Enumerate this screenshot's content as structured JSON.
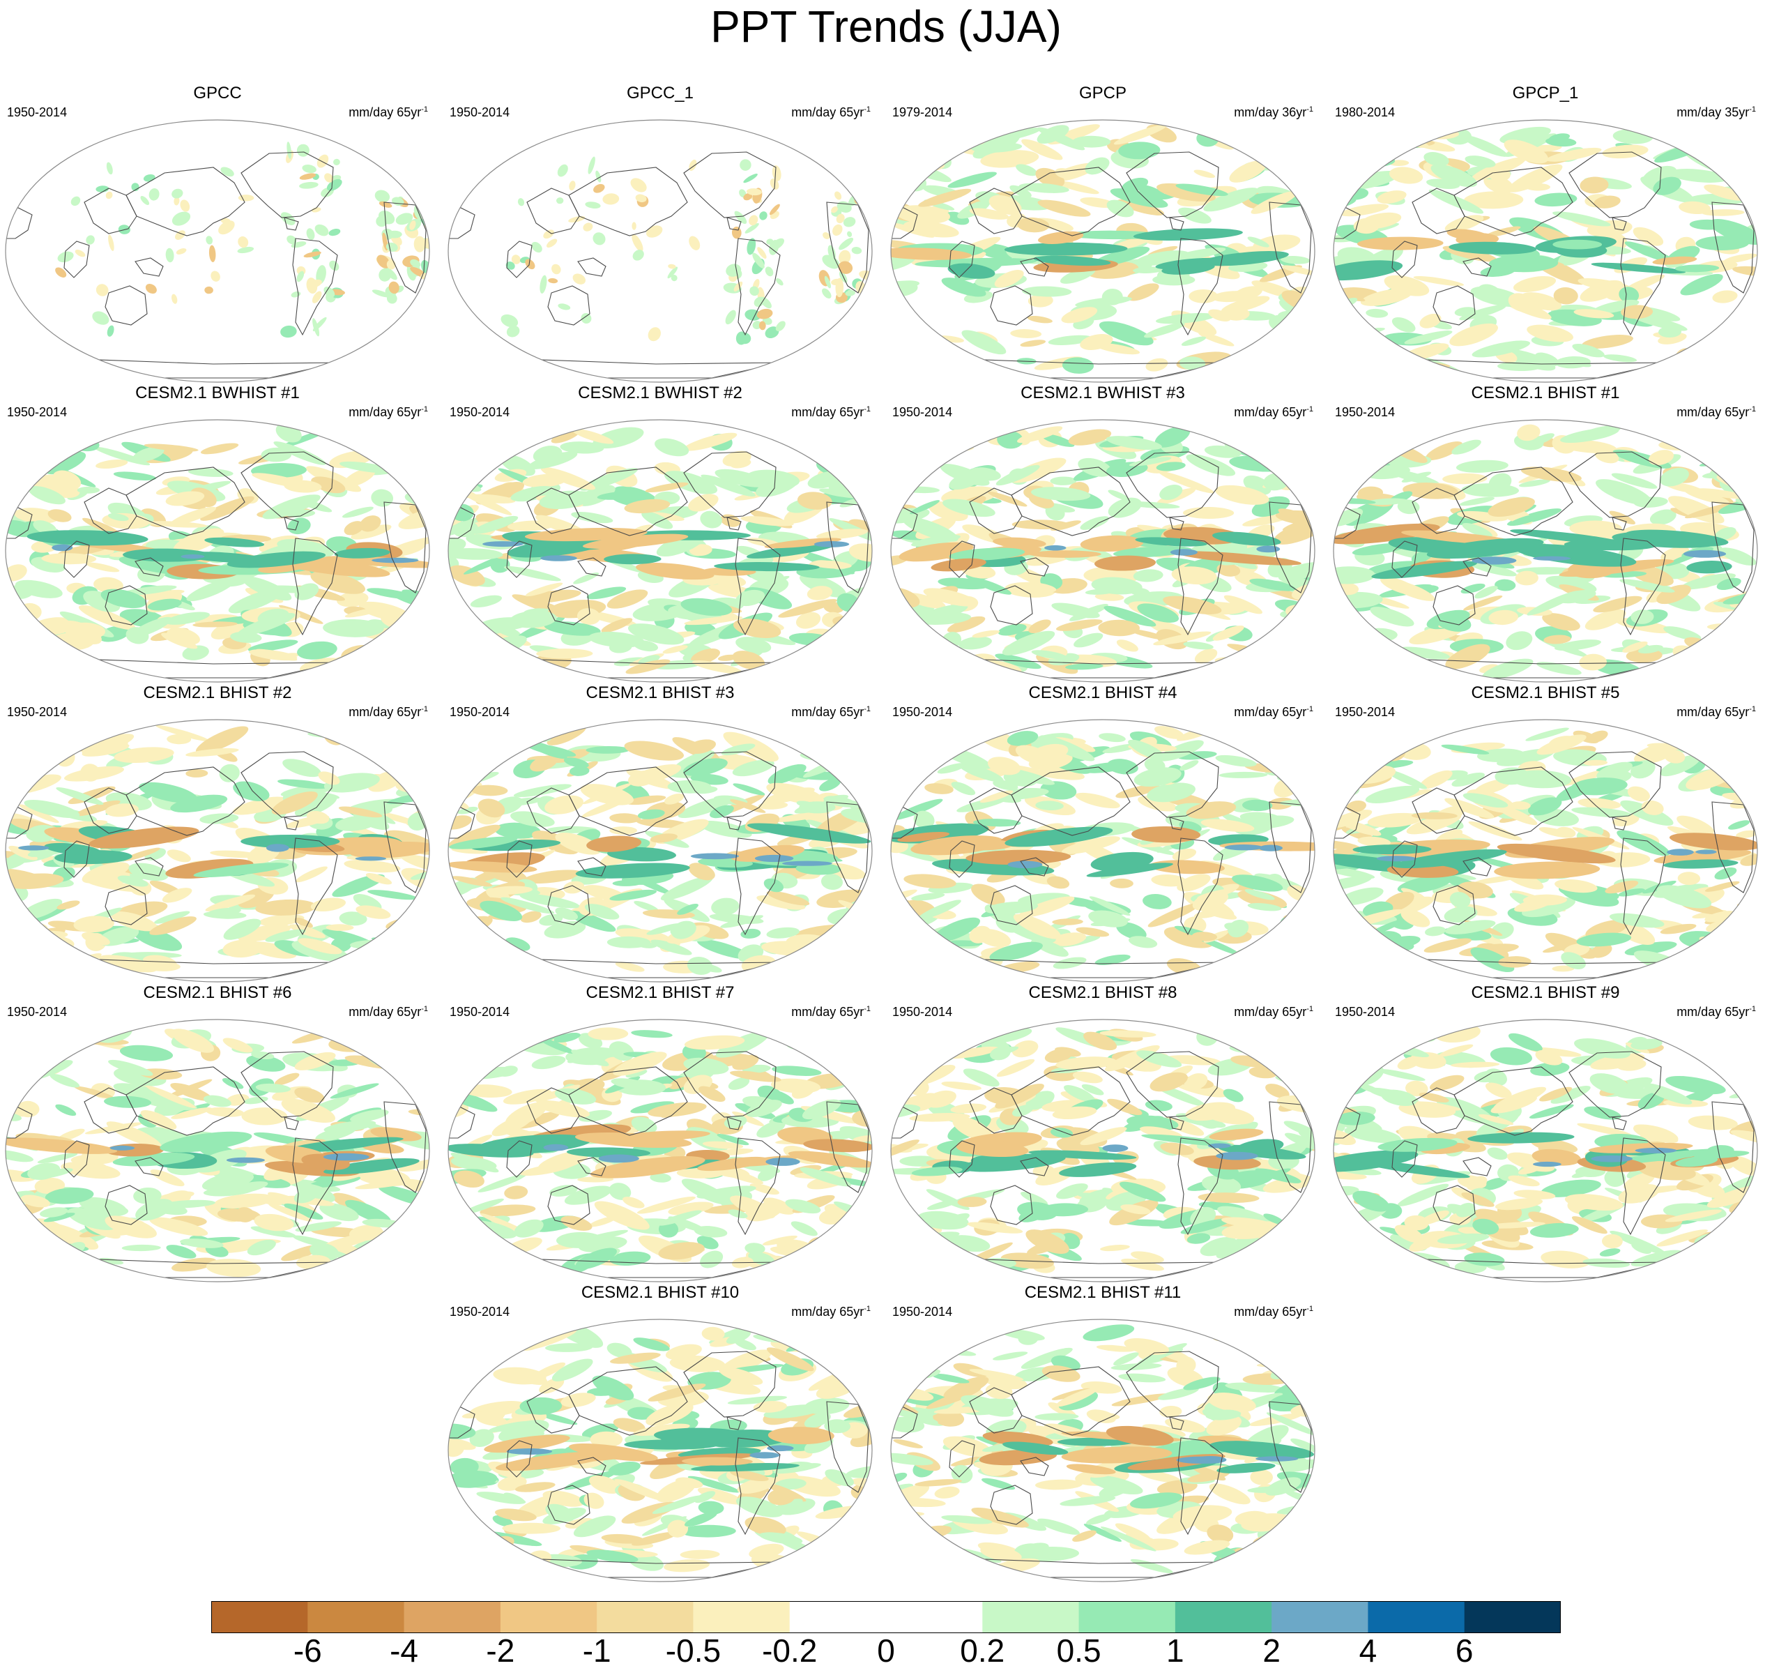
{
  "title": "PPT Trends (JJA)",
  "units_base": "mm/day",
  "units_exp": "-1",
  "panels": [
    {
      "title": "GPCC",
      "period": "1950-2014",
      "span": "65yr",
      "kind": "obs_land"
    },
    {
      "title": "GPCC_1",
      "period": "1950-2014",
      "span": "65yr",
      "kind": "obs_land"
    },
    {
      "title": "GPCP",
      "period": "1979-2014",
      "span": "36yr",
      "kind": "obs_global"
    },
    {
      "title": "GPCP_1",
      "period": "1980-2014",
      "span": "35yr",
      "kind": "obs_global"
    },
    {
      "title": "CESM2.1 BWHIST #1",
      "period": "1950-2014",
      "span": "65yr",
      "kind": "model"
    },
    {
      "title": "CESM2.1 BWHIST #2",
      "period": "1950-2014",
      "span": "65yr",
      "kind": "model"
    },
    {
      "title": "CESM2.1 BWHIST #3",
      "period": "1950-2014",
      "span": "65yr",
      "kind": "model"
    },
    {
      "title": "CESM2.1 BHIST #1",
      "period": "1950-2014",
      "span": "65yr",
      "kind": "model"
    },
    {
      "title": "CESM2.1 BHIST #2",
      "period": "1950-2014",
      "span": "65yr",
      "kind": "model"
    },
    {
      "title": "CESM2.1 BHIST #3",
      "period": "1950-2014",
      "span": "65yr",
      "kind": "model"
    },
    {
      "title": "CESM2.1 BHIST #4",
      "period": "1950-2014",
      "span": "65yr",
      "kind": "model"
    },
    {
      "title": "CESM2.1 BHIST #5",
      "period": "1950-2014",
      "span": "65yr",
      "kind": "model"
    },
    {
      "title": "CESM2.1 BHIST #6",
      "period": "1950-2014",
      "span": "65yr",
      "kind": "model"
    },
    {
      "title": "CESM2.1 BHIST #7",
      "period": "1950-2014",
      "span": "65yr",
      "kind": "model"
    },
    {
      "title": "CESM2.1 BHIST #8",
      "period": "1950-2014",
      "span": "65yr",
      "kind": "model"
    },
    {
      "title": "CESM2.1 BHIST #9",
      "period": "1950-2014",
      "span": "65yr",
      "kind": "model"
    },
    {
      "title": "CESM2.1 BHIST #10",
      "period": "1950-2014",
      "span": "65yr",
      "kind": "model"
    },
    {
      "title": "CESM2.1 BHIST #11",
      "period": "1950-2014",
      "span": "65yr",
      "kind": "model"
    }
  ],
  "colorbar": {
    "labels": [
      "-6",
      "-4",
      "-2",
      "-1",
      "-0.5",
      "-0.2",
      "0",
      "0.2",
      "0.5",
      "1",
      "2",
      "4",
      "6"
    ],
    "colors": [
      "#b5672a",
      "#cb8840",
      "#dea463",
      "#f0c784",
      "#f3dc9e",
      "#fbf0bd",
      "#ffffff",
      "#ffffff",
      "#c8f8c7",
      "#96eab4",
      "#52bf9a",
      "#6ca8c7",
      "#0b6aa9",
      "#04375a"
    ]
  }
}
